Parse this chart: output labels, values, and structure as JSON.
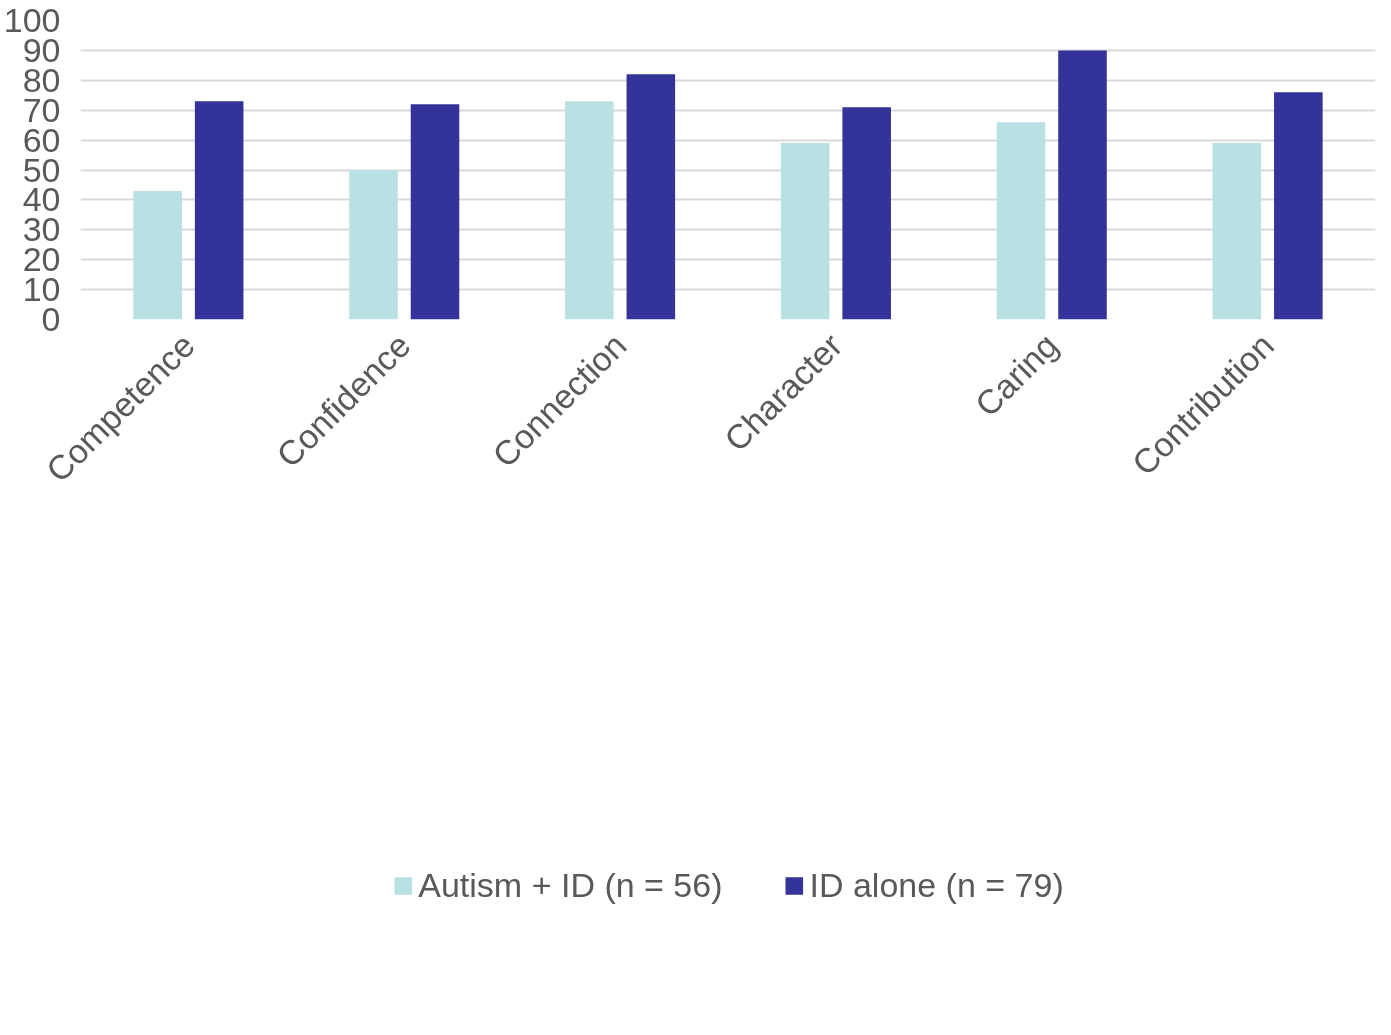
{
  "chart_data": {
    "type": "bar",
    "categories": [
      "Competence",
      "Confidence",
      "Connection",
      "Character",
      "Caring",
      "Contribution"
    ],
    "series": [
      {
        "name": "Autism + ID (n = 56)",
        "color": "#b9e0e2",
        "values": [
          43,
          50,
          73,
          59,
          66,
          59
        ]
      },
      {
        "name": "ID alone (n = 79)",
        "color": "#343399",
        "values": [
          73,
          72,
          82,
          71,
          90,
          76
        ]
      }
    ],
    "ylim": [
      0,
      100
    ],
    "yticks": [
      0,
      10,
      20,
      30,
      40,
      50,
      60,
      70,
      80,
      90,
      100
    ],
    "grid": "y",
    "legend": "bottom"
  }
}
